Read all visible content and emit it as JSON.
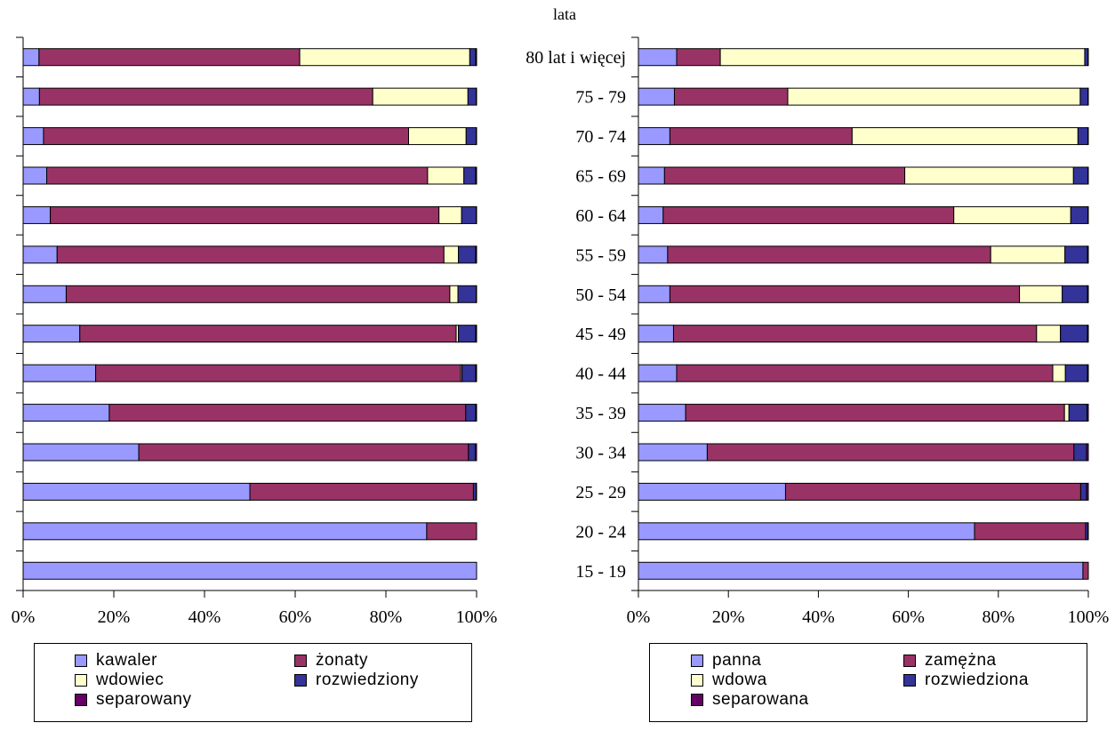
{
  "chart_data": [
    {
      "type": "bar",
      "orientation": "horizontal",
      "stacked": "percent",
      "categories": [
        "15 - 19",
        "20 - 24",
        "25 - 29",
        "30 - 34",
        "35 - 39",
        "40 - 44",
        "45 - 49",
        "50 - 54",
        "55 - 59",
        "60 - 64",
        "65 - 69",
        "70 - 74",
        "75 - 79",
        "80 lat i więcej"
      ],
      "category_labels_shown": false,
      "series": [
        {
          "name": "kawaler",
          "color": "#9999FF",
          "values": [
            100,
            89,
            50,
            25.5,
            19,
            16,
            12.5,
            9.5,
            7.5,
            6,
            5.2,
            4.5,
            3.6,
            3.5
          ]
        },
        {
          "name": "żonaty",
          "color": "#993366",
          "values": [
            0,
            11,
            49.3,
            72.7,
            78.6,
            80.5,
            83,
            84.6,
            85.3,
            85.7,
            84,
            80.5,
            73.5,
            57.5
          ]
        },
        {
          "name": "wdowiec",
          "color": "#FFFFCC",
          "values": [
            0,
            0,
            0,
            0,
            0,
            0.3,
            0.5,
            1.8,
            3.2,
            5,
            8,
            12.7,
            21,
            37.5
          ]
        },
        {
          "name": "rozwiedziony",
          "color": "#333399",
          "values": [
            0,
            0,
            0.6,
            1.5,
            2.2,
            3,
            3.8,
            4,
            3.8,
            3.2,
            2.6,
            2.2,
            1.8,
            1.3
          ]
        },
        {
          "name": "separowany",
          "color": "#660066",
          "values": [
            0,
            0,
            0.1,
            0.3,
            0.2,
            0.2,
            0.2,
            0.1,
            0.2,
            0.1,
            0.2,
            0.1,
            0.1,
            0.2
          ]
        }
      ],
      "x_ticks": [
        "0%",
        "20%",
        "40%",
        "60%",
        "80%",
        "100%"
      ],
      "xlim": [
        0,
        100
      ],
      "grid": false,
      "legend_placement": "bottom"
    },
    {
      "type": "bar",
      "orientation": "horizontal",
      "stacked": "percent",
      "ylabel": "lata",
      "categories": [
        "15 - 19",
        "20 - 24",
        "25 - 29",
        "30 - 34",
        "35 - 39",
        "40 - 44",
        "45 - 49",
        "50 - 54",
        "55 - 59",
        "60 - 64",
        "65 - 69",
        "70 - 74",
        "75 - 79",
        "80 lat i więcej"
      ],
      "series": [
        {
          "name": "panna",
          "color": "#9999FF",
          "values": [
            98.8,
            74.7,
            32.7,
            15.3,
            10.5,
            8.5,
            7.8,
            7,
            6.5,
            5.5,
            5.8,
            7,
            8,
            8.5
          ]
        },
        {
          "name": "zamężna",
          "color": "#993366",
          "values": [
            1.2,
            24.7,
            65.6,
            81.5,
            84.2,
            83.6,
            80.7,
            77.7,
            71.8,
            64.6,
            53.4,
            40.5,
            25.2,
            9.7
          ]
        },
        {
          "name": "wdowa",
          "color": "#FFFFCC",
          "values": [
            0,
            0,
            0,
            0,
            1,
            2.8,
            5.3,
            9.5,
            16.5,
            26,
            37.5,
            50.2,
            65,
            81
          ]
        },
        {
          "name": "rozwiedziona",
          "color": "#333399",
          "values": [
            0,
            0.5,
            1.3,
            2.8,
            4,
            4.9,
            6,
            5.6,
            5,
            3.8,
            3.2,
            2.2,
            1.7,
            0.7
          ]
        },
        {
          "name": "separowana",
          "color": "#660066",
          "values": [
            0,
            0.1,
            0.4,
            0.4,
            0.3,
            0.2,
            0.2,
            0.2,
            0.2,
            0.1,
            0.1,
            0.1,
            0.1,
            0.1
          ]
        }
      ],
      "x_ticks": [
        "0%",
        "20%",
        "40%",
        "60%",
        "80%",
        "100%"
      ],
      "xlim": [
        0,
        100
      ],
      "grid": false,
      "legend_placement": "bottom"
    }
  ]
}
